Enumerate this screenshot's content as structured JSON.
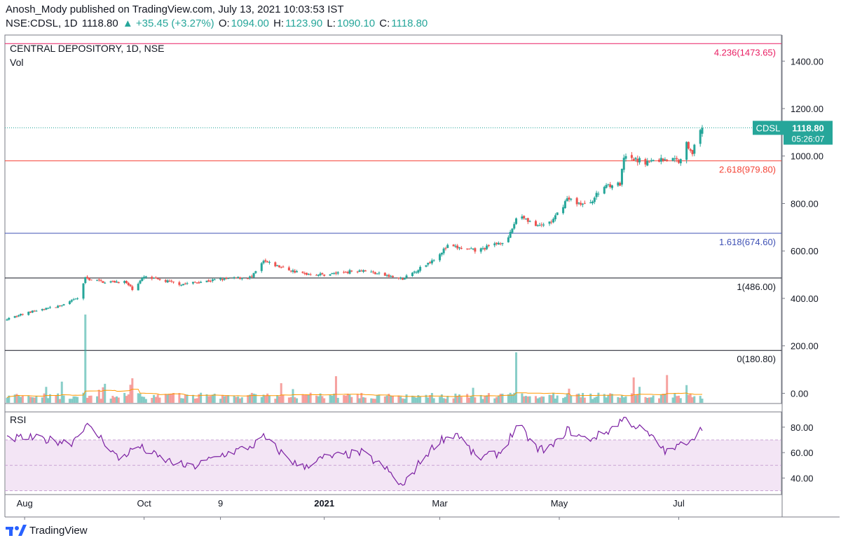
{
  "header": {
    "published": "Anosh_Mody published on TradingView.com, July 13, 2021 10:03:53 IST",
    "symbol": "NSE:CDSL, 1D",
    "last": "1118.80",
    "change": "▲ +35.45 (+3.27%)",
    "open_label": "O:",
    "open": "1094.00",
    "high_label": "H:",
    "high": "1123.90",
    "low_label": "L:",
    "low": "1090.10",
    "close_label": "C:",
    "close": "1118.80"
  },
  "footer": {
    "brand": "TradingView"
  },
  "colors": {
    "up": "#26a69a",
    "down": "#ef5350",
    "rsi": "#7b1fa2",
    "vol_ma": "#ff9800",
    "rsi_band": "#f3e5f5"
  },
  "chart_data": [
    {
      "type": "candlestick",
      "title": "CENTRAL DEPOSITORY, 1D, NSE",
      "y_ticks": [
        "1400.00",
        "1200.00",
        "1000.00",
        "800.00",
        "600.00",
        "400.00",
        "200.00",
        "0.00"
      ],
      "ylim": [
        -40,
        1510
      ],
      "x_ticks": [
        "Aug",
        "Oct",
        "9",
        "2021",
        "Mar",
        "May",
        "Jul"
      ],
      "x_tick_dates": [
        "2020-08-01",
        "2020-10-01",
        "2020-11-09",
        "2021-01-01",
        "2021-03-01",
        "2021-05-01",
        "2021-07-01"
      ],
      "date_range": [
        "2020-07-23",
        "2021-07-13"
      ],
      "price_anchors": [
        [
          "2020-07-23",
          315
        ],
        [
          "2020-08-05",
          345
        ],
        [
          "2020-08-20",
          370
        ],
        [
          "2020-08-28",
          400
        ],
        [
          "2020-09-01",
          485
        ],
        [
          "2020-09-10",
          470
        ],
        [
          "2020-09-21",
          470
        ],
        [
          "2020-09-25",
          440
        ],
        [
          "2020-10-01",
          490
        ],
        [
          "2020-10-20",
          460
        ],
        [
          "2020-11-09",
          480
        ],
        [
          "2020-11-25",
          490
        ],
        [
          "2020-12-01",
          555
        ],
        [
          "2020-12-20",
          505
        ],
        [
          "2021-01-01",
          500
        ],
        [
          "2021-01-20",
          520
        ],
        [
          "2021-02-10",
          480
        ],
        [
          "2021-02-25",
          560
        ],
        [
          "2021-03-05",
          620
        ],
        [
          "2021-03-20",
          600
        ],
        [
          "2021-04-05",
          650
        ],
        [
          "2021-04-10",
          760
        ],
        [
          "2021-04-20",
          700
        ],
        [
          "2021-04-28",
          730
        ],
        [
          "2021-05-05",
          820
        ],
        [
          "2021-05-15",
          790
        ],
        [
          "2021-05-25",
          880
        ],
        [
          "2021-06-01",
          880
        ],
        [
          "2021-06-03",
          990
        ],
        [
          "2021-06-15",
          975
        ],
        [
          "2021-06-25",
          990
        ],
        [
          "2021-07-01",
          980
        ],
        [
          "2021-07-05",
          1050
        ],
        [
          "2021-07-08",
          1020
        ],
        [
          "2021-07-13",
          1118.8
        ]
      ],
      "fib_levels": [
        {
          "label": "4.236(1473.65)",
          "value": 1473.65,
          "color": "#e91e63"
        },
        {
          "label": "2.618(979.80)",
          "value": 979.8,
          "color": "#f44336"
        },
        {
          "label": "1.618(674.60)",
          "value": 674.6,
          "color": "#3f51b5"
        },
        {
          "label": "1(486.00)",
          "value": 486.0,
          "color": "#131722"
        },
        {
          "label": "0(180.80)",
          "value": 180.8,
          "color": "#131722"
        }
      ],
      "last_price": {
        "symbol": "CDSL",
        "value": "1118.80",
        "countdown": "05:26:07",
        "numeric": 1118.8
      },
      "legend": "Vol"
    },
    {
      "type": "bar",
      "title": "Vol",
      "note": "Volume bars with moving average, relative scale (no axis printed)",
      "spike_dates": [
        "2020-09-01",
        "2021-04-09",
        "2021-06-25"
      ]
    },
    {
      "type": "line",
      "title": "RSI",
      "y_ticks": [
        "80.00",
        "60.00",
        "40.00"
      ],
      "ylim": [
        27,
        92
      ],
      "band": [
        30,
        70
      ],
      "rsi_anchors": [
        [
          "2020-07-23",
          70
        ],
        [
          "2020-08-01",
          72
        ],
        [
          "2020-08-25",
          68
        ],
        [
          "2020-09-01",
          82
        ],
        [
          "2020-09-10",
          70
        ],
        [
          "2020-09-18",
          55
        ],
        [
          "2020-09-28",
          65
        ],
        [
          "2020-10-10",
          55
        ],
        [
          "2020-10-25",
          48
        ],
        [
          "2020-11-09",
          58
        ],
        [
          "2020-11-25",
          65
        ],
        [
          "2020-12-01",
          72
        ],
        [
          "2020-12-10",
          60
        ],
        [
          "2020-12-20",
          48
        ],
        [
          "2021-01-01",
          56
        ],
        [
          "2021-01-20",
          60
        ],
        [
          "2021-02-01",
          48
        ],
        [
          "2021-02-10",
          33
        ],
        [
          "2021-02-20",
          55
        ],
        [
          "2021-03-01",
          70
        ],
        [
          "2021-03-10",
          75
        ],
        [
          "2021-03-20",
          55
        ],
        [
          "2021-04-01",
          60
        ],
        [
          "2021-04-10",
          82
        ],
        [
          "2021-04-20",
          62
        ],
        [
          "2021-04-28",
          65
        ],
        [
          "2021-05-05",
          78
        ],
        [
          "2021-05-15",
          70
        ],
        [
          "2021-05-25",
          76
        ],
        [
          "2021-06-03",
          87
        ],
        [
          "2021-06-15",
          75
        ],
        [
          "2021-06-25",
          60
        ],
        [
          "2021-07-01",
          65
        ],
        [
          "2021-07-08",
          72
        ],
        [
          "2021-07-13",
          79
        ]
      ]
    }
  ]
}
